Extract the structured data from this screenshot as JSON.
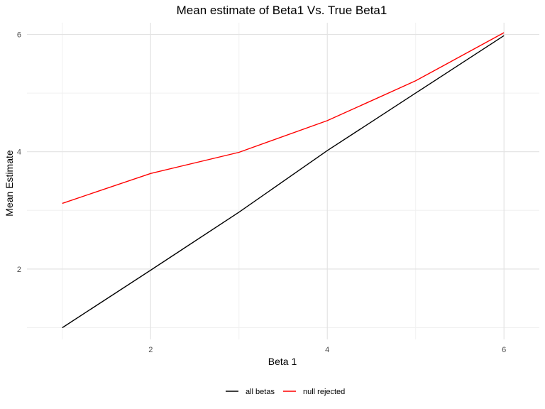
{
  "chart_data": {
    "type": "line",
    "title": "Mean estimate of Beta1 Vs. True Beta1",
    "xlabel": "Beta 1",
    "ylabel": "Mean Estimate",
    "xlim": [
      0.6,
      6.4
    ],
    "ylim": [
      0.8,
      6.2
    ],
    "x_ticks": [
      2,
      4,
      6
    ],
    "y_ticks": [
      2,
      4,
      6
    ],
    "x_minor": [
      1,
      3,
      5
    ],
    "y_minor": [
      1,
      3,
      5
    ],
    "grid": true,
    "legend_position": "bottom",
    "x": [
      1,
      2,
      3,
      4,
      5,
      6
    ],
    "series": [
      {
        "name": "all betas",
        "color": "#000000",
        "values": [
          1.0,
          1.98,
          2.97,
          4.02,
          5.0,
          5.98
        ]
      },
      {
        "name": "null rejected",
        "color": "#ff0000",
        "values": [
          3.12,
          3.63,
          3.99,
          4.53,
          5.21,
          6.03
        ]
      }
    ]
  }
}
